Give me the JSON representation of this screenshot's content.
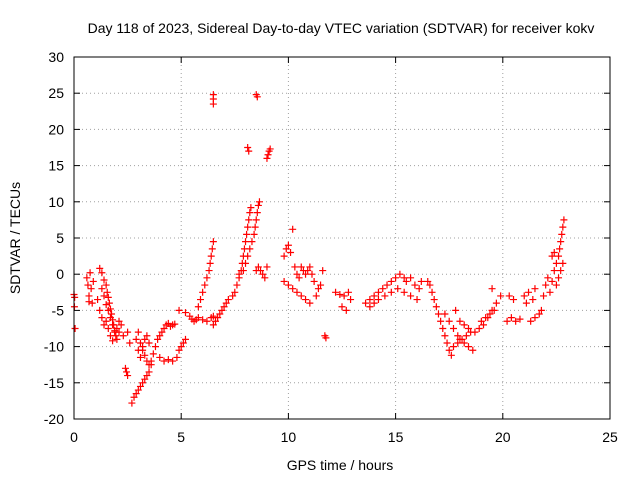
{
  "chart_data": {
    "type": "scatter",
    "title": "Day 118 of 2023, Sidereal Day-to-day VTEC variation (SDTVAR) for receiver kokv",
    "xlabel": "GPS time / hours",
    "ylabel": "SDTVAR / TECUs",
    "xlim": [
      0,
      25
    ],
    "ylim": [
      -20,
      30
    ],
    "xticks": [
      0,
      5,
      10,
      15,
      20,
      25
    ],
    "yticks": [
      -20,
      -15,
      -10,
      -5,
      0,
      5,
      10,
      15,
      20,
      25,
      30
    ],
    "grid": true,
    "marker": "+",
    "color": "#ff0000",
    "series": [
      {
        "name": "SDTVAR",
        "points": [
          [
            0.0,
            -2.8
          ],
          [
            0.02,
            -4.5
          ],
          [
            0.05,
            -7.5
          ],
          [
            0.03,
            -3.2
          ],
          [
            0.6,
            -0.5
          ],
          [
            0.65,
            -1.5
          ],
          [
            0.7,
            -3.0
          ],
          [
            0.75,
            0.2
          ],
          [
            0.8,
            -2.0
          ],
          [
            0.7,
            -3.8
          ],
          [
            0.85,
            -4.0
          ],
          [
            0.9,
            -1.0
          ],
          [
            1.2,
            0.8
          ],
          [
            1.3,
            0.2
          ],
          [
            1.4,
            -0.8
          ],
          [
            1.5,
            -1.5
          ],
          [
            1.55,
            -2.5
          ],
          [
            1.6,
            -3.2
          ],
          [
            1.65,
            -4.0
          ],
          [
            1.7,
            -4.8
          ],
          [
            1.75,
            -5.5
          ],
          [
            1.8,
            -6.3
          ],
          [
            1.85,
            -7.0
          ],
          [
            1.9,
            -7.8
          ],
          [
            1.95,
            -8.5
          ],
          [
            2.0,
            -9.0
          ],
          [
            2.1,
            -8.0
          ],
          [
            1.3,
            -2.0
          ],
          [
            1.4,
            -3.0
          ],
          [
            1.5,
            -4.2
          ],
          [
            1.6,
            -5.0
          ],
          [
            1.7,
            -6.0
          ],
          [
            1.8,
            -7.0
          ],
          [
            1.9,
            -8.0
          ],
          [
            2.0,
            -7.5
          ],
          [
            2.1,
            -6.5
          ],
          [
            2.2,
            -7.0
          ],
          [
            2.3,
            -8.5
          ],
          [
            2.5,
            -8.0
          ],
          [
            2.6,
            -9.5
          ],
          [
            1.1,
            -3.5
          ],
          [
            1.2,
            -5.0
          ],
          [
            1.3,
            -6.0
          ],
          [
            1.4,
            -7.0
          ],
          [
            1.5,
            -6.5
          ],
          [
            1.6,
            -7.5
          ],
          [
            1.7,
            -8.5
          ],
          [
            1.8,
            -9.2
          ],
          [
            2.4,
            -13.0
          ],
          [
            2.45,
            -13.5
          ],
          [
            2.5,
            -14.0
          ],
          [
            2.7,
            -17.8
          ],
          [
            2.8,
            -17.0
          ],
          [
            2.9,
            -16.5
          ],
          [
            3.0,
            -16.0
          ],
          [
            3.1,
            -15.5
          ],
          [
            3.2,
            -15.0
          ],
          [
            3.3,
            -14.5
          ],
          [
            3.4,
            -14.0
          ],
          [
            3.5,
            -13.5
          ],
          [
            3.6,
            -12.5
          ],
          [
            2.9,
            -9.0
          ],
          [
            3.0,
            -8.0
          ],
          [
            3.1,
            -9.5
          ],
          [
            3.2,
            -10.5
          ],
          [
            3.3,
            -11.2
          ],
          [
            3.4,
            -12.0
          ],
          [
            3.5,
            -12.5
          ],
          [
            3.6,
            -12.0
          ],
          [
            3.7,
            -11.0
          ],
          [
            3.0,
            -10.5
          ],
          [
            3.1,
            -11.5
          ],
          [
            3.2,
            -10.0
          ],
          [
            3.3,
            -9.0
          ],
          [
            3.4,
            -8.5
          ],
          [
            3.5,
            -9.5
          ],
          [
            3.8,
            -10.0
          ],
          [
            3.9,
            -9.0
          ],
          [
            4.0,
            -8.5
          ],
          [
            4.1,
            -8.0
          ],
          [
            4.2,
            -7.5
          ],
          [
            4.3,
            -7.0
          ],
          [
            4.4,
            -6.8
          ],
          [
            4.5,
            -7.2
          ],
          [
            4.6,
            -7.0
          ],
          [
            4.7,
            -6.9
          ],
          [
            4.0,
            -11.5
          ],
          [
            4.2,
            -12.0
          ],
          [
            4.4,
            -11.8
          ],
          [
            4.6,
            -12.0
          ],
          [
            4.8,
            -11.5
          ],
          [
            4.9,
            -10.5
          ],
          [
            5.0,
            -10.0
          ],
          [
            5.1,
            -9.5
          ],
          [
            5.2,
            -9.0
          ],
          [
            4.9,
            -5.0
          ],
          [
            5.2,
            -5.3
          ],
          [
            5.4,
            -5.8
          ],
          [
            5.5,
            -6.2
          ],
          [
            5.6,
            -6.5
          ],
          [
            5.7,
            -6.3
          ],
          [
            5.8,
            -6.0
          ],
          [
            6.0,
            -6.3
          ],
          [
            6.2,
            -6.5
          ],
          [
            6.4,
            -6.0
          ],
          [
            6.5,
            -5.8
          ],
          [
            5.8,
            -4.5
          ],
          [
            5.9,
            -3.5
          ],
          [
            6.0,
            -2.5
          ],
          [
            6.1,
            -1.5
          ],
          [
            6.2,
            -0.5
          ],
          [
            6.3,
            0.5
          ],
          [
            6.35,
            1.5
          ],
          [
            6.4,
            2.5
          ],
          [
            6.45,
            3.5
          ],
          [
            6.5,
            4.5
          ],
          [
            6.5,
            -7.0
          ],
          [
            6.6,
            -6.5
          ],
          [
            6.7,
            -6.0
          ],
          [
            6.8,
            -5.5
          ],
          [
            6.9,
            -5.0
          ],
          [
            7.0,
            -4.5
          ],
          [
            7.1,
            -4.0
          ],
          [
            7.2,
            -3.5
          ],
          [
            6.5,
            24.8
          ],
          [
            6.5,
            24.2
          ],
          [
            6.5,
            23.5
          ],
          [
            7.4,
            -3.0
          ],
          [
            7.5,
            -2.5
          ],
          [
            7.6,
            -1.5
          ],
          [
            7.7,
            -0.5
          ],
          [
            7.8,
            0.5
          ],
          [
            7.85,
            1.5
          ],
          [
            7.9,
            2.5
          ],
          [
            7.95,
            3.5
          ],
          [
            8.0,
            4.5
          ],
          [
            8.05,
            5.5
          ],
          [
            8.1,
            6.5
          ],
          [
            8.15,
            7.5
          ],
          [
            8.2,
            8.5
          ],
          [
            8.25,
            9.2
          ],
          [
            7.7,
            0.0
          ],
          [
            7.9,
            0.5
          ],
          [
            8.0,
            1.5
          ],
          [
            8.1,
            2.5
          ],
          [
            8.2,
            3.5
          ],
          [
            8.3,
            4.5
          ],
          [
            8.4,
            5.5
          ],
          [
            8.45,
            6.5
          ],
          [
            8.5,
            7.5
          ],
          [
            8.55,
            8.5
          ],
          [
            8.6,
            9.5
          ],
          [
            8.65,
            10.0
          ],
          [
            8.5,
            0.5
          ],
          [
            8.6,
            1.0
          ],
          [
            8.7,
            0.5
          ],
          [
            8.8,
            0.0
          ],
          [
            9.0,
            1.0
          ],
          [
            8.9,
            -0.5
          ],
          [
            8.1,
            17.5
          ],
          [
            8.15,
            17.0
          ],
          [
            8.5,
            24.8
          ],
          [
            8.55,
            24.5
          ],
          [
            9.0,
            16.0
          ],
          [
            9.05,
            16.5
          ],
          [
            9.1,
            17.0
          ],
          [
            9.15,
            17.3
          ],
          [
            9.8,
            2.5
          ],
          [
            9.9,
            3.5
          ],
          [
            10.0,
            4.0
          ],
          [
            10.1,
            3.0
          ],
          [
            10.2,
            6.2
          ],
          [
            10.3,
            1.0
          ],
          [
            10.4,
            0.0
          ],
          [
            10.5,
            -0.5
          ],
          [
            9.8,
            -1.0
          ],
          [
            10.0,
            -1.5
          ],
          [
            10.2,
            -2.0
          ],
          [
            10.4,
            -2.5
          ],
          [
            10.6,
            -3.0
          ],
          [
            10.8,
            -3.5
          ],
          [
            11.0,
            -4.0
          ],
          [
            10.6,
            1.0
          ],
          [
            10.7,
            0.5
          ],
          [
            10.8,
            0.0
          ],
          [
            10.9,
            0.5
          ],
          [
            11.0,
            1.0
          ],
          [
            11.1,
            0.0
          ],
          [
            11.2,
            -1.0
          ],
          [
            11.3,
            -3.0
          ],
          [
            11.4,
            -2.0
          ],
          [
            11.5,
            -1.5
          ],
          [
            11.6,
            0.5
          ],
          [
            11.7,
            -8.5
          ],
          [
            11.75,
            -8.8
          ],
          [
            12.2,
            -2.5
          ],
          [
            12.4,
            -2.8
          ],
          [
            12.6,
            -3.0
          ],
          [
            12.8,
            -2.5
          ],
          [
            12.9,
            -3.5
          ],
          [
            12.5,
            -4.5
          ],
          [
            12.7,
            -5.0
          ],
          [
            13.6,
            -4.0
          ],
          [
            13.8,
            -3.5
          ],
          [
            14.0,
            -3.0
          ],
          [
            14.2,
            -2.5
          ],
          [
            14.4,
            -2.0
          ],
          [
            14.6,
            -1.5
          ],
          [
            14.8,
            -1.0
          ],
          [
            15.0,
            -0.5
          ],
          [
            15.2,
            0.0
          ],
          [
            15.4,
            -0.5
          ],
          [
            13.8,
            -4.5
          ],
          [
            14.0,
            -4.0
          ],
          [
            14.2,
            -3.5
          ],
          [
            14.5,
            -3.0
          ],
          [
            14.8,
            -2.5
          ],
          [
            15.1,
            -2.0
          ],
          [
            15.4,
            -2.5
          ],
          [
            15.7,
            -3.0
          ],
          [
            16.0,
            -3.5
          ],
          [
            15.5,
            -1.0
          ],
          [
            15.7,
            -0.5
          ],
          [
            15.9,
            -1.5
          ],
          [
            16.1,
            -2.0
          ],
          [
            16.2,
            -1.0
          ],
          [
            16.5,
            -1.0
          ],
          [
            16.6,
            -1.5
          ],
          [
            16.7,
            -2.5
          ],
          [
            16.8,
            -3.5
          ],
          [
            16.9,
            -4.5
          ],
          [
            17.0,
            -5.5
          ],
          [
            17.1,
            -6.5
          ],
          [
            17.2,
            -7.5
          ],
          [
            17.3,
            -8.5
          ],
          [
            17.4,
            -9.5
          ],
          [
            17.5,
            -10.5
          ],
          [
            17.6,
            -11.2
          ],
          [
            17.3,
            -5.5
          ],
          [
            17.5,
            -6.5
          ],
          [
            17.7,
            -7.5
          ],
          [
            17.9,
            -8.5
          ],
          [
            18.0,
            -9.0
          ],
          [
            18.2,
            -9.5
          ],
          [
            18.4,
            -10.0
          ],
          [
            18.6,
            -10.5
          ],
          [
            17.7,
            -10.0
          ],
          [
            17.9,
            -9.5
          ],
          [
            18.1,
            -9.0
          ],
          [
            18.3,
            -8.5
          ],
          [
            18.5,
            -8.0
          ],
          [
            17.8,
            -5.0
          ],
          [
            18.0,
            -6.5
          ],
          [
            18.2,
            -7.0
          ],
          [
            18.4,
            -7.5
          ],
          [
            18.7,
            -8.0
          ],
          [
            18.9,
            -7.5
          ],
          [
            19.1,
            -7.0
          ],
          [
            19.3,
            -6.0
          ],
          [
            19.5,
            -5.0
          ],
          [
            19.7,
            -4.0
          ],
          [
            19.9,
            -3.0
          ],
          [
            19.5,
            -2.0
          ],
          [
            19.0,
            -6.5
          ],
          [
            19.2,
            -6.0
          ],
          [
            19.4,
            -5.5
          ],
          [
            19.6,
            -5.0
          ],
          [
            20.2,
            -6.5
          ],
          [
            20.4,
            -6.0
          ],
          [
            20.6,
            -6.5
          ],
          [
            20.8,
            -6.2
          ],
          [
            20.3,
            -3.0
          ],
          [
            20.5,
            -3.5
          ],
          [
            21.0,
            -3.0
          ],
          [
            21.2,
            -2.5
          ],
          [
            21.4,
            -3.5
          ],
          [
            21.5,
            -2.0
          ],
          [
            21.1,
            -4.0
          ],
          [
            21.3,
            -6.5
          ],
          [
            21.5,
            -6.0
          ],
          [
            21.7,
            -5.5
          ],
          [
            21.8,
            -5.0
          ],
          [
            21.9,
            -3.0
          ],
          [
            22.0,
            -1.5
          ],
          [
            22.1,
            -0.5
          ],
          [
            22.2,
            -2.5
          ],
          [
            22.3,
            -1.0
          ],
          [
            22.4,
            0.5
          ],
          [
            22.5,
            1.5
          ],
          [
            22.6,
            2.5
          ],
          [
            22.65,
            3.5
          ],
          [
            22.7,
            4.5
          ],
          [
            22.75,
            5.5
          ],
          [
            22.8,
            6.5
          ],
          [
            22.85,
            7.5
          ],
          [
            22.3,
            2.5
          ],
          [
            22.4,
            3.0
          ],
          [
            22.5,
            -1.5
          ],
          [
            22.6,
            -0.5
          ],
          [
            22.7,
            0.5
          ],
          [
            22.8,
            1.5
          ]
        ]
      }
    ]
  }
}
